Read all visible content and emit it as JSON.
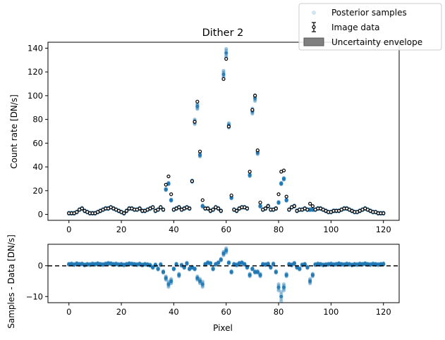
{
  "figure": {
    "title": "Dither 2",
    "legend": {
      "placement": "top-right, outside",
      "entries": [
        "Posterior samples",
        "Image data",
        "Uncertainty envelope"
      ]
    }
  },
  "chart_data": [
    {
      "type": "scatter",
      "panel": "top",
      "title": "Dither 2",
      "xlabel": "",
      "ylabel": "Count rate [DN/s]",
      "xlim": [
        -8,
        126
      ],
      "ylim": [
        -5,
        145
      ],
      "xticks": [
        0,
        20,
        40,
        60,
        80,
        100,
        120
      ],
      "yticks": [
        0,
        20,
        40,
        60,
        80,
        100,
        120,
        140
      ],
      "grid": false,
      "colors": {
        "samples": "#1f77b4",
        "data": "#000000",
        "envelope": "#808080"
      },
      "series": [
        {
          "name": "Image data",
          "x": [
            0,
            1,
            2,
            3,
            4,
            5,
            6,
            7,
            8,
            9,
            10,
            11,
            12,
            13,
            14,
            15,
            16,
            17,
            18,
            19,
            20,
            21,
            22,
            23,
            24,
            25,
            26,
            27,
            28,
            29,
            30,
            31,
            32,
            33,
            34,
            35,
            36,
            37,
            38,
            39,
            40,
            41,
            42,
            43,
            44,
            45,
            46,
            47,
            48,
            49,
            50,
            51,
            52,
            53,
            54,
            55,
            56,
            57,
            58,
            59,
            60,
            61,
            62,
            63,
            64,
            65,
            66,
            67,
            68,
            69,
            70,
            71,
            72,
            73,
            74,
            75,
            76,
            77,
            78,
            79,
            80,
            81,
            82,
            83,
            84,
            85,
            86,
            87,
            88,
            89,
            90,
            91,
            92,
            93,
            94,
            95,
            96,
            97,
            98,
            99,
            100,
            101,
            102,
            103,
            104,
            105,
            106,
            107,
            108,
            109,
            110,
            111,
            112,
            113,
            114,
            115,
            116,
            117,
            118,
            119,
            120
          ],
          "y": [
            1,
            1,
            1,
            2,
            4,
            5,
            3,
            2,
            1,
            1,
            1,
            2,
            3,
            4,
            5,
            5,
            6,
            5,
            4,
            3,
            2,
            1,
            3,
            5,
            5,
            4,
            4,
            5,
            3,
            3,
            4,
            5,
            6,
            3,
            4,
            6,
            4,
            25,
            32,
            17,
            4,
            5,
            6,
            4,
            5,
            6,
            5,
            28,
            78,
            95,
            53,
            12,
            5,
            5,
            3,
            4,
            6,
            5,
            3,
            114,
            131,
            74,
            16,
            4,
            3,
            5,
            6,
            6,
            5,
            36,
            88,
            100,
            54,
            10,
            4,
            5,
            7,
            4,
            4,
            5,
            17,
            36,
            37,
            15,
            4,
            6,
            7,
            3,
            4,
            4,
            5,
            4,
            9,
            7,
            4,
            5,
            5,
            4,
            3,
            2,
            2,
            3,
            3,
            3,
            4,
            5,
            5,
            4,
            3,
            2,
            2,
            3,
            4,
            5,
            4,
            3,
            2,
            2,
            1,
            1,
            1
          ]
        },
        {
          "name": "Posterior samples",
          "x": [
            0,
            1,
            2,
            3,
            4,
            5,
            6,
            7,
            8,
            9,
            10,
            11,
            12,
            13,
            14,
            15,
            16,
            17,
            18,
            19,
            20,
            21,
            22,
            23,
            24,
            25,
            26,
            27,
            28,
            29,
            30,
            31,
            32,
            33,
            34,
            35,
            36,
            37,
            38,
            39,
            40,
            41,
            42,
            43,
            44,
            45,
            46,
            47,
            48,
            49,
            50,
            51,
            52,
            53,
            54,
            55,
            56,
            57,
            58,
            59,
            60,
            61,
            62,
            63,
            64,
            65,
            66,
            67,
            68,
            69,
            70,
            71,
            72,
            73,
            74,
            75,
            76,
            77,
            78,
            79,
            80,
            81,
            82,
            83,
            84,
            85,
            86,
            87,
            88,
            89,
            90,
            91,
            92,
            93,
            94,
            95,
            96,
            97,
            98,
            99,
            100,
            101,
            102,
            103,
            104,
            105,
            106,
            107,
            108,
            109,
            110,
            111,
            112,
            113,
            114,
            115,
            116,
            117,
            118,
            119,
            120
          ],
          "y": [
            1,
            1,
            1,
            2,
            4,
            5,
            3,
            2,
            1,
            1,
            1,
            2,
            3,
            4,
            5,
            5,
            6,
            5,
            4,
            3,
            2,
            1,
            3,
            5,
            5,
            4,
            4,
            5,
            3,
            3,
            4,
            5,
            6,
            3,
            4,
            6,
            4,
            21,
            26,
            12,
            4,
            5,
            6,
            4,
            5,
            6,
            5,
            28,
            78,
            91,
            50,
            7,
            5,
            5,
            3,
            4,
            6,
            5,
            3,
            118,
            136,
            75,
            14,
            4,
            3,
            5,
            6,
            6,
            5,
            33,
            87,
            98,
            52,
            7,
            4,
            5,
            7,
            4,
            4,
            5,
            10,
            26,
            30,
            12,
            4,
            6,
            7,
            3,
            4,
            4,
            5,
            4,
            4,
            4,
            4,
            5,
            5,
            4,
            3,
            2,
            2,
            3,
            3,
            3,
            4,
            5,
            5,
            4,
            3,
            2,
            2,
            3,
            4,
            5,
            4,
            3,
            2,
            2,
            1,
            1,
            1
          ]
        }
      ]
    },
    {
      "type": "scatter",
      "panel": "bottom",
      "xlabel": "Pixel",
      "ylabel": "Samples - Data [DN/s]",
      "xlim": [
        -8,
        126
      ],
      "ylim": [
        -12,
        7
      ],
      "xticks": [
        0,
        20,
        40,
        60,
        80,
        100,
        120
      ],
      "yticks": [
        -10,
        0
      ],
      "zero_line": "dashed",
      "series": [
        {
          "name": "Posterior samples",
          "x": [
            0,
            1,
            2,
            3,
            4,
            5,
            6,
            7,
            8,
            9,
            10,
            11,
            12,
            13,
            14,
            15,
            16,
            17,
            18,
            19,
            20,
            21,
            22,
            23,
            24,
            25,
            26,
            27,
            28,
            29,
            30,
            31,
            32,
            33,
            34,
            35,
            36,
            37,
            38,
            39,
            40,
            41,
            42,
            43,
            44,
            45,
            46,
            47,
            48,
            49,
            50,
            51,
            52,
            53,
            54,
            55,
            56,
            57,
            58,
            59,
            60,
            61,
            62,
            63,
            64,
            65,
            66,
            67,
            68,
            69,
            70,
            71,
            72,
            73,
            74,
            75,
            76,
            77,
            78,
            79,
            80,
            81,
            82,
            83,
            84,
            85,
            86,
            87,
            88,
            89,
            90,
            91,
            92,
            93,
            94,
            95,
            96,
            97,
            98,
            99,
            100,
            101,
            102,
            103,
            104,
            105,
            106,
            107,
            108,
            109,
            110,
            111,
            112,
            113,
            114,
            115,
            116,
            117,
            118,
            119,
            120
          ],
          "y": [
            0.5,
            0.6,
            0.4,
            0.7,
            0.5,
            0.6,
            0.3,
            0.5,
            0.4,
            0.6,
            0.5,
            0.7,
            0.5,
            0.4,
            0.6,
            0.8,
            0.7,
            0.5,
            0.6,
            0.4,
            0.5,
            0.3,
            0.5,
            0.7,
            0.6,
            0.5,
            0.4,
            0.6,
            0.3,
            0.5,
            0.4,
            0.2,
            -0.5,
            0.3,
            -1,
            0.4,
            -2,
            -4,
            -6,
            -5,
            -1,
            0.5,
            -3,
            0.2,
            -0.5,
            0.8,
            -1,
            -0.5,
            -1,
            -4,
            -5,
            -6,
            0.5,
            1,
            0.8,
            -1,
            0.5,
            1,
            2,
            4,
            5,
            1,
            -2,
            0.5,
            0.3,
            0.8,
            1,
            0.5,
            -0.5,
            -3,
            -1,
            -2,
            -2,
            -3,
            0.5,
            0.4,
            0.6,
            -0.5,
            0.6,
            -2,
            -7,
            -10,
            -7,
            -3,
            0.5,
            0.3,
            0.8,
            -0.5,
            -1,
            0.3,
            0.5,
            -0.5,
            -5,
            -3,
            0.4,
            0.6,
            0.5,
            0.3,
            0.4,
            0.5,
            0.6,
            0.4,
            0.5,
            0.7,
            0.5,
            0.4,
            0.6,
            0.5,
            0.3,
            0.5,
            0.4,
            0.6,
            0.5,
            0.7,
            0.5,
            0.4,
            0.6,
            0.5,
            0.4,
            0.5,
            0.6
          ]
        }
      ]
    }
  ]
}
